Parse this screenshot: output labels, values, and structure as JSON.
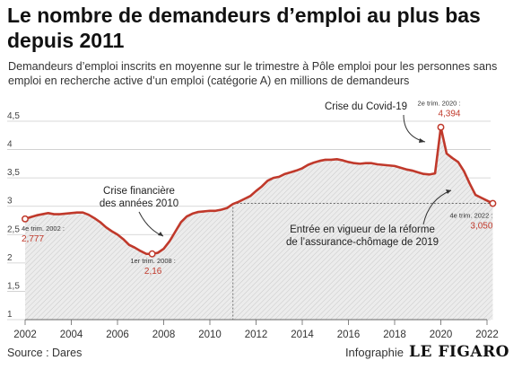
{
  "header": {
    "title": "Le nombre de demandeurs d’emploi au plus bas depuis 2011",
    "subtitle": "Demandeurs d’emploi inscrits en moyenne sur le trimestre à Pôle emploi pour les personnes sans emploi en recherche active d’un emploi (catégorie A) en millions de demandeurs"
  },
  "footer": {
    "source": "Source : Dares",
    "credit": "Infographie",
    "logo": "LE FIGARO"
  },
  "colors": {
    "line": "#c0392b",
    "accent_text": "#c0392b",
    "area": "#e6e6e6",
    "grid": "#cccccc"
  },
  "chart_data": {
    "type": "area",
    "title": "Le nombre de demandeurs d’emploi au plus bas depuis 2011",
    "xlim": [
      2002,
      2022
    ],
    "ylim": [
      1,
      4.5
    ],
    "x_ticks": [
      "2002",
      "2004",
      "2006",
      "2008",
      "2010",
      "2012",
      "2014",
      "2016",
      "2018",
      "2020",
      "2022"
    ],
    "y_ticks": [
      "1",
      "1,5",
      "2",
      "2,5",
      "3",
      "3,5",
      "4",
      "4,5"
    ],
    "grid": true,
    "series": [
      {
        "values": [
          [
            2002.0,
            2.777
          ],
          [
            2002.25,
            2.81
          ],
          [
            2002.5,
            2.84
          ],
          [
            2002.75,
            2.86
          ],
          [
            2003.0,
            2.88
          ],
          [
            2003.25,
            2.86
          ],
          [
            2003.5,
            2.86
          ],
          [
            2003.75,
            2.87
          ],
          [
            2004.0,
            2.88
          ],
          [
            2004.25,
            2.89
          ],
          [
            2004.5,
            2.89
          ],
          [
            2004.75,
            2.85
          ],
          [
            2005.0,
            2.79
          ],
          [
            2005.25,
            2.72
          ],
          [
            2005.5,
            2.63
          ],
          [
            2005.75,
            2.56
          ],
          [
            2006.0,
            2.5
          ],
          [
            2006.25,
            2.42
          ],
          [
            2006.5,
            2.32
          ],
          [
            2006.75,
            2.27
          ],
          [
            2007.0,
            2.21
          ],
          [
            2007.25,
            2.16
          ],
          [
            2007.5,
            2.16
          ],
          [
            2007.75,
            2.18
          ],
          [
            2008.0,
            2.25
          ],
          [
            2008.25,
            2.38
          ],
          [
            2008.5,
            2.55
          ],
          [
            2008.75,
            2.72
          ],
          [
            2009.0,
            2.82
          ],
          [
            2009.25,
            2.87
          ],
          [
            2009.5,
            2.9
          ],
          [
            2009.75,
            2.91
          ],
          [
            2010.0,
            2.92
          ],
          [
            2010.25,
            2.92
          ],
          [
            2010.5,
            2.94
          ],
          [
            2010.75,
            2.97
          ],
          [
            2011.0,
            3.04
          ],
          [
            2011.25,
            3.08
          ],
          [
            2011.5,
            3.13
          ],
          [
            2011.75,
            3.18
          ],
          [
            2012.0,
            3.27
          ],
          [
            2012.25,
            3.35
          ],
          [
            2012.5,
            3.45
          ],
          [
            2012.75,
            3.5
          ],
          [
            2013.0,
            3.52
          ],
          [
            2013.25,
            3.57
          ],
          [
            2013.5,
            3.6
          ],
          [
            2013.75,
            3.63
          ],
          [
            2014.0,
            3.67
          ],
          [
            2014.25,
            3.73
          ],
          [
            2014.5,
            3.77
          ],
          [
            2014.75,
            3.8
          ],
          [
            2015.0,
            3.82
          ],
          [
            2015.25,
            3.82
          ],
          [
            2015.5,
            3.83
          ],
          [
            2015.75,
            3.81
          ],
          [
            2016.0,
            3.78
          ],
          [
            2016.25,
            3.76
          ],
          [
            2016.5,
            3.75
          ],
          [
            2016.75,
            3.76
          ],
          [
            2017.0,
            3.76
          ],
          [
            2017.25,
            3.74
          ],
          [
            2017.5,
            3.73
          ],
          [
            2017.75,
            3.72
          ],
          [
            2018.0,
            3.71
          ],
          [
            2018.25,
            3.68
          ],
          [
            2018.5,
            3.65
          ],
          [
            2018.75,
            3.63
          ],
          [
            2019.0,
            3.6
          ],
          [
            2019.25,
            3.57
          ],
          [
            2019.5,
            3.56
          ],
          [
            2019.75,
            3.58
          ],
          [
            2020.0,
            4.394
          ],
          [
            2020.25,
            3.93
          ],
          [
            2020.5,
            3.85
          ],
          [
            2020.75,
            3.78
          ],
          [
            2021.0,
            3.62
          ],
          [
            2021.25,
            3.4
          ],
          [
            2021.5,
            3.2
          ],
          [
            2021.75,
            3.15
          ],
          [
            2022.0,
            3.1
          ],
          [
            2022.25,
            3.05
          ]
        ]
      }
    ],
    "highlighted_points": [
      {
        "x": 2002.0,
        "y": 2.777,
        "label": "4e trim. 2002 :",
        "value": "2,777"
      },
      {
        "x": 2007.5,
        "y": 2.16,
        "label": "1er trim. 2008 :",
        "value": "2,16"
      },
      {
        "x": 2020.0,
        "y": 4.394,
        "label": "2e trim. 2020 :",
        "value": "4,394"
      },
      {
        "x": 2022.25,
        "y": 3.05,
        "label": "4e trim. 2022 :",
        "value": "3,050"
      }
    ],
    "reference": {
      "x": 2011.0,
      "y": 3.05
    },
    "annotations": {
      "crisis_financial_1": "Crise financière",
      "crisis_financial_2": "des années 2010",
      "covid": "Crise du Covid-19",
      "reform_1": "Entrée en vigueur de la réforme",
      "reform_2": "de l’assurance-chômage de 2019"
    }
  }
}
